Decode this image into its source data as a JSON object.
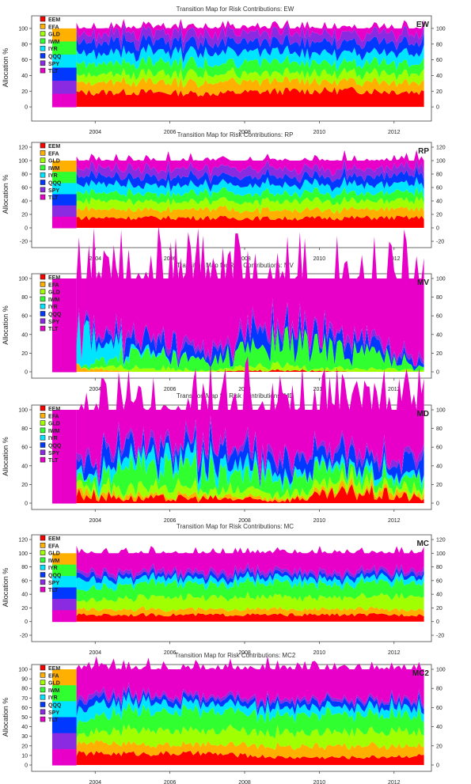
{
  "colors": {
    "EEM": "#ff0000",
    "EFA": "#ffb000",
    "GLD": "#a0ff00",
    "IWM": "#30ff30",
    "IYR": "#00e5ff",
    "QQQ": "#0038ff",
    "SPY": "#8a2be2",
    "TLT": "#e800c8"
  },
  "chart_data": [
    {
      "type": "area",
      "title": "Transition Map for Risk Contributions: EW",
      "corner_label": "EW",
      "ylabel": "Allocation %",
      "ylim": [
        -10,
        110
      ],
      "yticks": [
        "0",
        "20",
        "40",
        "60",
        "80",
        "100"
      ],
      "xlim": [
        2002.3,
        2013.0
      ],
      "xticks": [
        "2004",
        "2006",
        "2008",
        "2010",
        "2012"
      ],
      "series": [
        {
          "name": "EEM",
          "values": [
            18,
            19,
            17,
            20,
            21,
            19
          ]
        },
        {
          "name": "EFA",
          "values": [
            14,
            13,
            14,
            13,
            12,
            13
          ]
        },
        {
          "name": "GLD",
          "values": [
            10,
            10,
            11,
            10,
            11,
            11
          ]
        },
        {
          "name": "IWM",
          "values": [
            14,
            14,
            13,
            14,
            13,
            13
          ]
        },
        {
          "name": "IYR",
          "values": [
            13,
            13,
            14,
            13,
            12,
            13
          ]
        },
        {
          "name": "QQQ",
          "values": [
            14,
            14,
            13,
            13,
            14,
            13
          ]
        },
        {
          "name": "SPY",
          "values": [
            11,
            11,
            12,
            11,
            11,
            12
          ]
        },
        {
          "name": "TLT",
          "values": [
            6,
            6,
            6,
            6,
            6,
            6
          ]
        }
      ],
      "x": [
        2003.5,
        2005,
        2007,
        2009,
        2011,
        2012.8
      ]
    },
    {
      "type": "area",
      "title": "Transition Map for Risk Contributions: RP",
      "corner_label": "RP",
      "ylabel": "Allocation %",
      "ylim": [
        -20,
        120
      ],
      "yticks": [
        "-20",
        "0",
        "20",
        "40",
        "60",
        "80",
        "100",
        "120"
      ],
      "xlim": [
        2002.3,
        2013.0
      ],
      "xticks": [
        "2004",
        "2006",
        "2008",
        "2010",
        "2012"
      ],
      "series": [
        {
          "name": "EEM",
          "values": [
            15,
            15,
            15,
            14,
            15,
            15
          ]
        },
        {
          "name": "EFA",
          "values": [
            13,
            12,
            13,
            12,
            13,
            12
          ]
        },
        {
          "name": "GLD",
          "values": [
            12,
            13,
            12,
            13,
            12,
            13
          ]
        },
        {
          "name": "IWM",
          "values": [
            12,
            12,
            12,
            12,
            12,
            12
          ]
        },
        {
          "name": "IYR",
          "values": [
            13,
            13,
            12,
            13,
            13,
            12
          ]
        },
        {
          "name": "QQQ",
          "values": [
            12,
            12,
            13,
            12,
            12,
            13
          ]
        },
        {
          "name": "SPY",
          "values": [
            12,
            12,
            12,
            12,
            12,
            12
          ]
        },
        {
          "name": "TLT",
          "values": [
            11,
            11,
            11,
            12,
            11,
            11
          ]
        }
      ],
      "x": [
        2003.5,
        2005,
        2007,
        2009,
        2011,
        2012.8
      ]
    },
    {
      "type": "area",
      "title": "Transition Map for Risk Contributions: MV",
      "corner_label": "MV",
      "ylabel": "Allocation %",
      "ylim": [
        0,
        100
      ],
      "yticks": [
        "0",
        "20",
        "40",
        "60",
        "80",
        "100"
      ],
      "xlim": [
        2002.3,
        2013.0
      ],
      "xticks": [
        "2004",
        "2006",
        "2008",
        "2010",
        "2012"
      ],
      "series": [
        {
          "name": "EEM",
          "values": [
            0,
            0,
            0,
            2,
            0,
            0
          ]
        },
        {
          "name": "EFA",
          "values": [
            5,
            0,
            0,
            0,
            0,
            0
          ]
        },
        {
          "name": "GLD",
          "values": [
            0,
            5,
            2,
            5,
            3,
            2
          ]
        },
        {
          "name": "IWM",
          "values": [
            0,
            15,
            10,
            25,
            20,
            5
          ]
        },
        {
          "name": "IYR",
          "values": [
            40,
            3,
            0,
            0,
            0,
            0
          ]
        },
        {
          "name": "QQQ",
          "values": [
            5,
            12,
            10,
            15,
            10,
            5
          ]
        },
        {
          "name": "SPY",
          "values": [
            3,
            5,
            5,
            5,
            5,
            3
          ]
        },
        {
          "name": "TLT",
          "values": [
            47,
            60,
            73,
            48,
            62,
            85
          ]
        }
      ],
      "x": [
        2003.5,
        2005,
        2007,
        2009,
        2011,
        2012.8
      ]
    },
    {
      "type": "area",
      "title": "Transition Map for Risk Contributions: MD",
      "corner_label": "MD",
      "ylabel": "Allocation %",
      "ylim": [
        0,
        100
      ],
      "yticks": [
        "0",
        "20",
        "40",
        "60",
        "80",
        "100"
      ],
      "xlim": [
        2002.3,
        2013.0
      ],
      "xticks": [
        "2004",
        "2006",
        "2008",
        "2010",
        "2012"
      ],
      "series": [
        {
          "name": "EEM",
          "values": [
            10,
            5,
            5,
            3,
            12,
            5
          ]
        },
        {
          "name": "EFA",
          "values": [
            5,
            3,
            3,
            2,
            4,
            5
          ]
        },
        {
          "name": "GLD",
          "values": [
            5,
            8,
            8,
            5,
            8,
            5
          ]
        },
        {
          "name": "IWM",
          "values": [
            5,
            20,
            20,
            15,
            10,
            10
          ]
        },
        {
          "name": "IYR",
          "values": [
            5,
            10,
            12,
            5,
            5,
            5
          ]
        },
        {
          "name": "QQQ",
          "values": [
            15,
            12,
            12,
            15,
            10,
            15
          ]
        },
        {
          "name": "SPY",
          "values": [
            5,
            5,
            5,
            5,
            5,
            5
          ]
        },
        {
          "name": "TLT",
          "values": [
            50,
            37,
            35,
            50,
            46,
            50
          ]
        }
      ],
      "x": [
        2003.5,
        2005,
        2007,
        2009,
        2011,
        2012.8
      ]
    },
    {
      "type": "area",
      "title": "Transition Map for Risk Contributions: MC",
      "corner_label": "MC",
      "ylabel": "Allocation %",
      "ylim": [
        -20,
        120
      ],
      "yticks": [
        "-20",
        "0",
        "20",
        "40",
        "60",
        "80",
        "100",
        "120"
      ],
      "xlim": [
        2002.3,
        2013.0
      ],
      "xticks": [
        "2004",
        "2006",
        "2008",
        "2010",
        "2012"
      ],
      "series": [
        {
          "name": "EEM",
          "values": [
            10,
            10,
            10,
            10,
            10,
            10
          ]
        },
        {
          "name": "EFA",
          "values": [
            8,
            8,
            8,
            8,
            8,
            8
          ]
        },
        {
          "name": "GLD",
          "values": [
            12,
            18,
            18,
            18,
            18,
            18
          ]
        },
        {
          "name": "IWM",
          "values": [
            15,
            20,
            20,
            20,
            20,
            20
          ]
        },
        {
          "name": "IYR",
          "values": [
            15,
            8,
            8,
            8,
            8,
            8
          ]
        },
        {
          "name": "QQQ",
          "values": [
            8,
            5,
            6,
            6,
            6,
            6
          ]
        },
        {
          "name": "SPY",
          "values": [
            5,
            5,
            5,
            5,
            5,
            5
          ]
        },
        {
          "name": "TLT",
          "values": [
            27,
            26,
            25,
            25,
            25,
            25
          ]
        }
      ],
      "x": [
        2003.5,
        2005,
        2007,
        2009,
        2011,
        2012.8
      ]
    },
    {
      "type": "area",
      "title": "Transition Map for Risk Contributions: MC2",
      "corner_label": "MC2",
      "ylabel": "Allocation %",
      "ylim": [
        0,
        100
      ],
      "yticks": [
        "0",
        "10",
        "20",
        "30",
        "40",
        "50",
        "60",
        "70",
        "80",
        "90",
        "100"
      ],
      "right_yticks": [
        "0",
        "20",
        "40",
        "60",
        "80",
        "100"
      ],
      "xlim": [
        2002.3,
        2013.0
      ],
      "xticks": [
        "2004",
        "2006",
        "2008",
        "2010",
        "2012"
      ],
      "series": [
        {
          "name": "EEM",
          "values": [
            12,
            12,
            12,
            8,
            8,
            10
          ]
        },
        {
          "name": "EFA",
          "values": [
            10,
            10,
            10,
            12,
            12,
            10
          ]
        },
        {
          "name": "GLD",
          "values": [
            8,
            15,
            15,
            15,
            15,
            15
          ]
        },
        {
          "name": "IWM",
          "values": [
            12,
            20,
            20,
            18,
            18,
            18
          ]
        },
        {
          "name": "IYR",
          "values": [
            14,
            10,
            8,
            8,
            8,
            8
          ]
        },
        {
          "name": "QQQ",
          "values": [
            8,
            5,
            5,
            6,
            6,
            6
          ]
        },
        {
          "name": "SPY",
          "values": [
            5,
            3,
            3,
            3,
            3,
            3
          ]
        },
        {
          "name": "TLT",
          "values": [
            31,
            25,
            27,
            30,
            30,
            30
          ]
        }
      ],
      "x": [
        2003.5,
        2005,
        2007,
        2009,
        2011,
        2012.8
      ]
    }
  ],
  "legend_labels": [
    "EEM",
    "EFA",
    "GLD",
    "IWM",
    "IYR",
    "QQQ",
    "SPY",
    "TLT"
  ]
}
